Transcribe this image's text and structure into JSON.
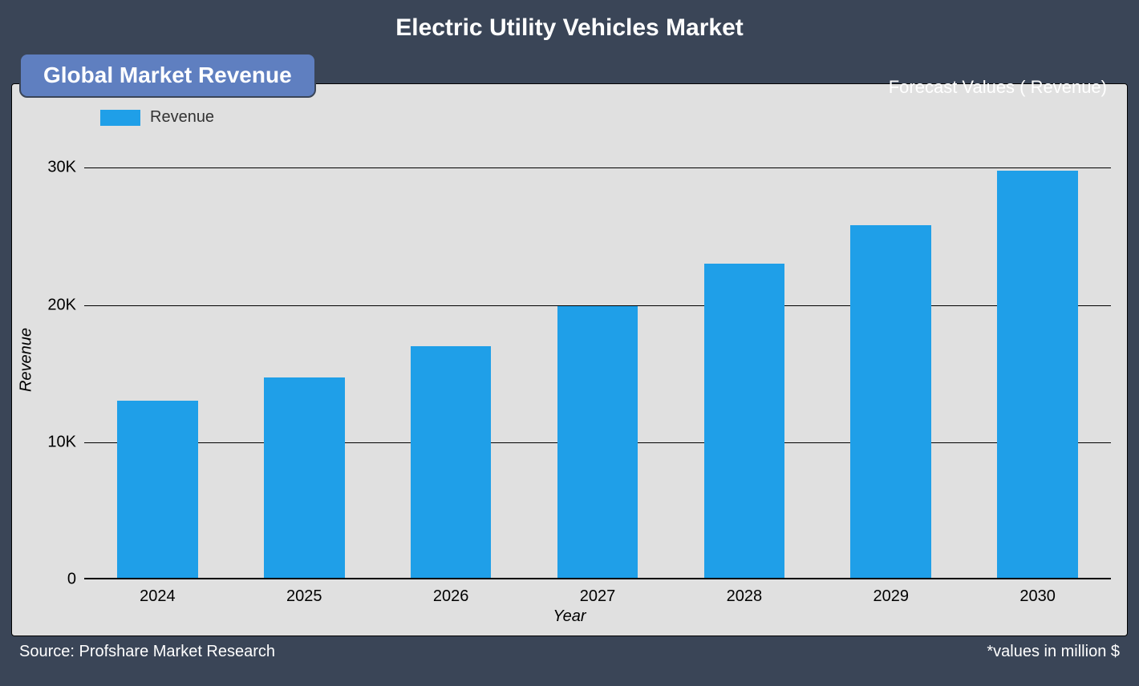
{
  "title": "Electric Utility Vehicles Market",
  "badge_label": "Global Market Revenue",
  "forecast_label": "Forecast Values ( Revenue)",
  "footer": {
    "source": "Source: Profshare Market Research",
    "values_note": "*values in million $"
  },
  "chart": {
    "type": "bar",
    "legend_label": "Revenue",
    "x_label": "Year",
    "y_label": "Revenue",
    "categories": [
      "2024",
      "2025",
      "2026",
      "2027",
      "2028",
      "2029",
      "2030"
    ],
    "values": [
      13000,
      14700,
      17000,
      19900,
      23000,
      25800,
      29800
    ],
    "y_ticks": [
      0,
      10000,
      20000,
      30000
    ],
    "y_tick_labels": [
      "0",
      "10K",
      "20K",
      "30K"
    ],
    "y_max": 32000,
    "bar_color": "#1f9fe8",
    "plot_background": "#e0e0e0",
    "grid_color": "#000000",
    "frame_background": "#3a4557",
    "badge_background": "#5f7fc0",
    "title_color": "#ffffff",
    "axis_label_color": "#000000",
    "tick_fontsize": 20,
    "title_fontsize": 30,
    "badge_fontsize": 28,
    "bar_width_ratio": 0.55
  }
}
